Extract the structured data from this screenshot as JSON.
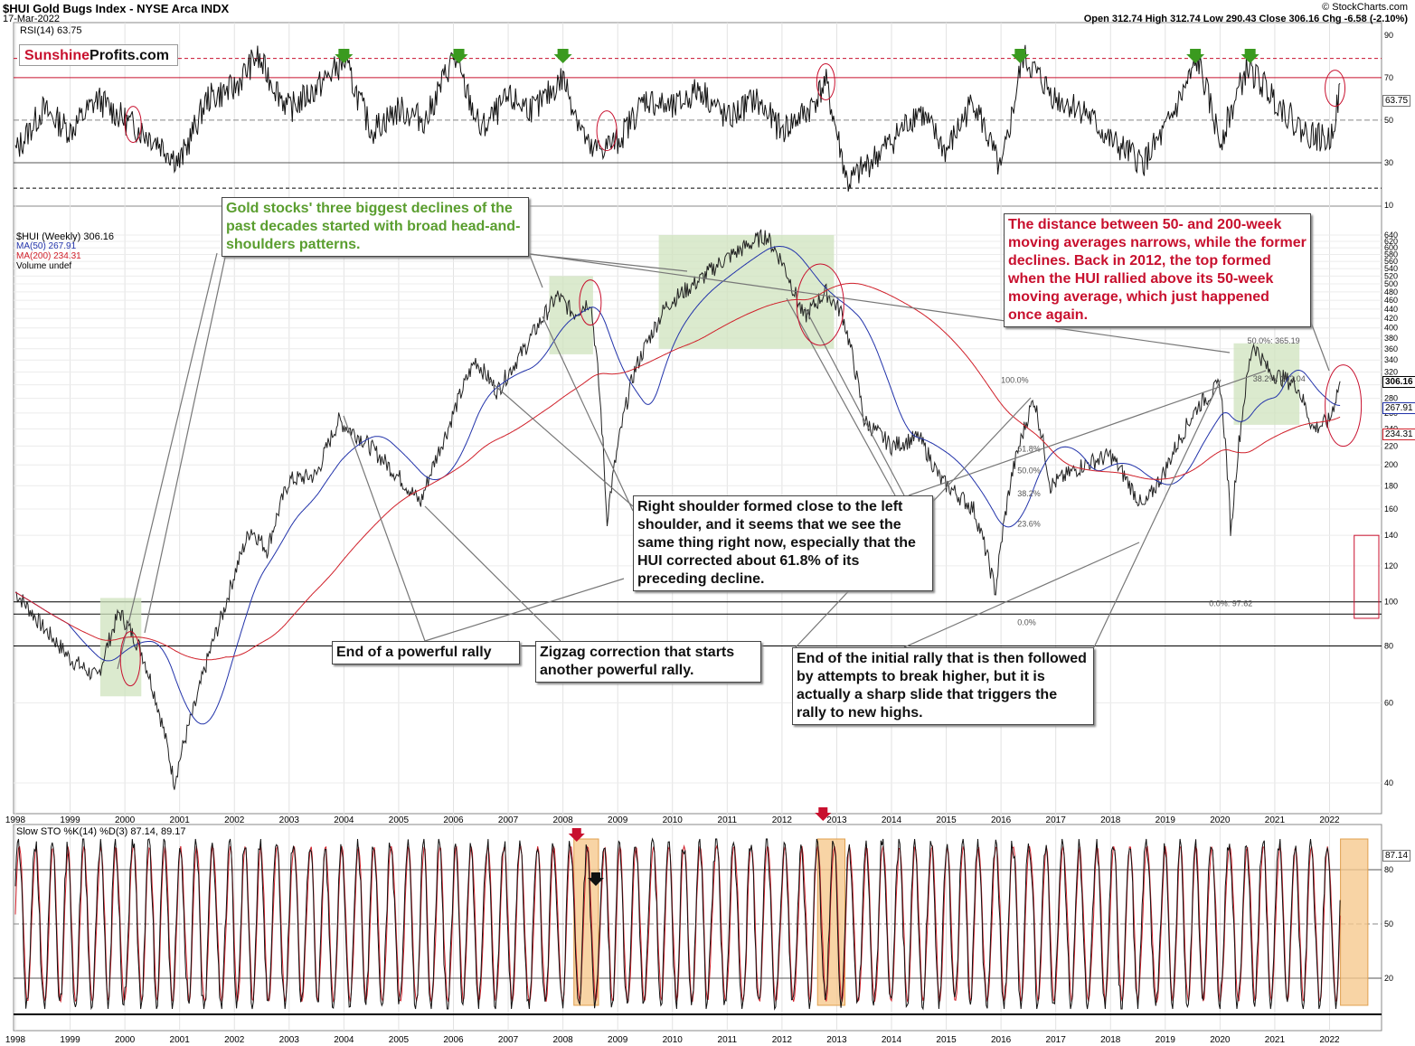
{
  "header": {
    "symbol_title": "$HUI Gold Bugs Index - NYSE Arca INDX",
    "date": "17-Mar-2022",
    "watermark": "© StockCharts.com",
    "ohlc": "Open 312.74  High 312.74  Low 290.43  Close 306.16  Chg -6.58 (-2.10%)",
    "logo_part1": "Sunshine",
    "logo_part2": "Profits.com"
  },
  "rsi_panel": {
    "legend": "RSI(14) 63.75",
    "value_label": "63.75",
    "y_ticks": [
      "90",
      "70",
      "50",
      "30",
      "10"
    ]
  },
  "price_panel": {
    "legend_main": "$HUI (Weekly) 306.16",
    "legend_ma50": "MA(50) 267.91",
    "legend_ma200": "MA(200) 234.31",
    "legend_volume": "Volume undef",
    "last_price": "306.16",
    "ma50_value": "267.91",
    "ma200_value": "234.31",
    "y_ticks": [
      "640",
      "620",
      "600",
      "580",
      "560",
      "540",
      "520",
      "500",
      "480",
      "460",
      "440",
      "420",
      "400",
      "380",
      "360",
      "340",
      "320",
      "300",
      "280",
      "260",
      "240",
      "220",
      "200",
      "180",
      "160",
      "140",
      "120",
      "100",
      "80",
      "60",
      "40"
    ],
    "fib_labels": [
      "50.0%: 365.19",
      "38.2%: 302.04",
      "0.0%: 97.62",
      "100.0%",
      "61.8%",
      "50.0%",
      "38.2%",
      "23.6%",
      "0.0%"
    ]
  },
  "stoch_panel": {
    "legend": "Slow STO %K(14) %D(3) 87.14, 89.17",
    "value_label": "87.14",
    "y_ticks": [
      "80",
      "50",
      "20"
    ]
  },
  "x_axis": [
    "1998",
    "1999",
    "2000",
    "2001",
    "2002",
    "2003",
    "2004",
    "2005",
    "2006",
    "2007",
    "2008",
    "2009",
    "2010",
    "2011",
    "2012",
    "2013",
    "2014",
    "2015",
    "2016",
    "2017",
    "2018",
    "2019",
    "2020",
    "2021",
    "2022"
  ],
  "annotations": {
    "hs_patterns": "Gold stocks' three biggest declines of the past decades started with broad head-and-shoulders patterns.",
    "ma_distance": "The distance between 50- and 200-week moving averages narrows, while the former declines. Back in 2012, the top formed when the HUI rallied above its 50-week moving average, which just happened once again.",
    "right_shoulder": "Right shoulder formed close to the left shoulder, and it seems that we see the same thing right now, especially that the HUI corrected about 61.8% of its preceding decline.",
    "end_rally": "End of a powerful rally",
    "zigzag": "Zigzag correction that starts another powerful rally.",
    "initial_rally": "End of the initial rally that is then followed by attempts to break higher, but it is actually a sharp slide that triggers the rally to new highs."
  },
  "colors": {
    "crimson": "#c8102e",
    "green_fill": "#cfe3bd",
    "orange_fill": "#f6c98f",
    "ma50": "#2233aa",
    "ma200": "#d0202a"
  },
  "chart_data": [
    {
      "type": "line",
      "title": "$HUI Gold Bugs Index (Weekly)",
      "y_scale": "log",
      "ylim": [
        32,
        660
      ],
      "x": [
        1998.0,
        1998.5,
        1999.0,
        1999.5,
        1999.9,
        2000.3,
        2000.9,
        2001.3,
        2001.8,
        2002.3,
        2002.6,
        2003.0,
        2003.5,
        2003.9,
        2004.3,
        2004.8,
        2005.4,
        2005.9,
        2006.4,
        2006.8,
        2007.3,
        2007.9,
        2008.2,
        2008.5,
        2008.8,
        2009.3,
        2009.9,
        2010.5,
        2010.9,
        2011.3,
        2011.7,
        2012.0,
        2012.4,
        2012.8,
        2013.1,
        2013.5,
        2014.0,
        2014.5,
        2014.9,
        2015.5,
        2015.9,
        2016.2,
        2016.6,
        2016.9,
        2017.5,
        2018.0,
        2018.6,
        2019.0,
        2019.6,
        2020.0,
        2020.2,
        2020.6,
        2020.9,
        2021.4,
        2021.7,
        2022.0,
        2022.2
      ],
      "y": [
        105,
        88,
        75,
        68,
        95,
        78,
        40,
        60,
        95,
        145,
        130,
        185,
        190,
        250,
        230,
        200,
        165,
        240,
        340,
        290,
        360,
        470,
        430,
        460,
        150,
        320,
        450,
        510,
        560,
        600,
        640,
        560,
        420,
        480,
        430,
        250,
        220,
        230,
        185,
        160,
        105,
        190,
        280,
        180,
        200,
        210,
        160,
        195,
        270,
        300,
        140,
        370,
        320,
        300,
        240,
        250,
        306
      ]
    },
    {
      "type": "line",
      "title": "RSI(14)",
      "ylim": [
        10,
        95
      ],
      "x": [
        1998.0,
        1998.5,
        1999.0,
        1999.5,
        2000.0,
        2000.6,
        2001.0,
        2001.5,
        2002.0,
        2002.4,
        2003.0,
        2003.5,
        2004.0,
        2004.5,
        2005.0,
        2005.5,
        2006.0,
        2006.5,
        2007.0,
        2007.5,
        2008.0,
        2008.5,
        2009.0,
        2009.5,
        2010.0,
        2010.5,
        2011.0,
        2011.5,
        2012.0,
        2012.5,
        2012.8,
        2013.2,
        2014.0,
        2014.5,
        2015.0,
        2015.5,
        2016.0,
        2016.4,
        2017.0,
        2017.5,
        2018.0,
        2018.6,
        2019.0,
        2019.6,
        2020.0,
        2020.5,
        2021.0,
        2021.5,
        2022.0,
        2022.2
      ],
      "y": [
        35,
        55,
        45,
        60,
        50,
        40,
        30,
        60,
        65,
        80,
        55,
        65,
        78,
        45,
        55,
        50,
        80,
        45,
        60,
        55,
        70,
        35,
        40,
        60,
        55,
        65,
        50,
        60,
        45,
        55,
        68,
        20,
        40,
        55,
        35,
        60,
        25,
        80,
        60,
        55,
        40,
        30,
        45,
        78,
        40,
        75,
        60,
        45,
        40,
        64
      ]
    },
    {
      "type": "line",
      "title": "Slow STO %K(14) %D(3)",
      "ylim": [
        0,
        100
      ],
      "series": [
        {
          "name": "%K",
          "values": [
            87.14
          ]
        },
        {
          "name": "%D",
          "values": [
            89.17
          ]
        }
      ]
    }
  ]
}
